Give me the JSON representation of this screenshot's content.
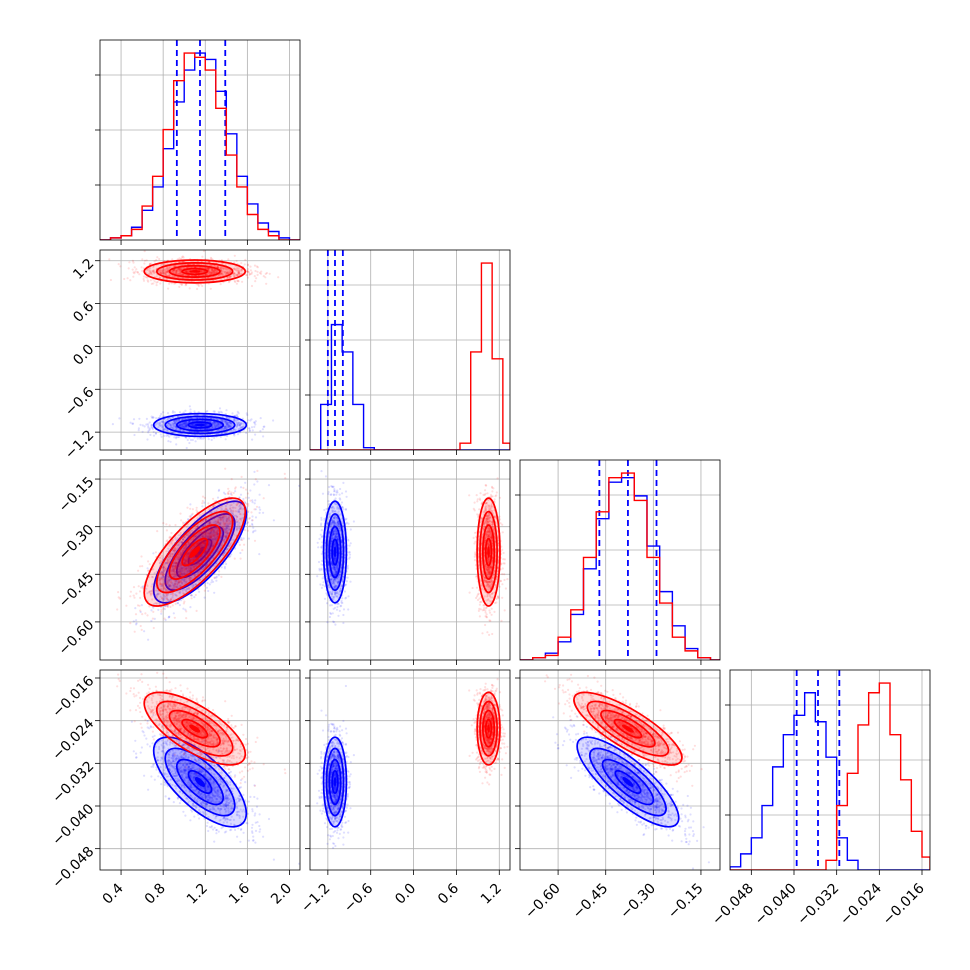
{
  "colors": {
    "series_a": "#0000ff",
    "series_b": "#ff0000",
    "grid": "#b0b0b0"
  },
  "chart_data": {
    "type": "corner",
    "grid": true,
    "parameters": [
      {
        "range": [
          0.2,
          2.1
        ],
        "ticks": [
          0.4,
          0.8,
          1.2,
          1.6,
          2.0
        ],
        "tick_labels": [
          "0.4",
          "0.8",
          "1.2",
          "1.6",
          "2.0"
        ]
      },
      {
        "range": [
          -1.45,
          1.35
        ],
        "ticks": [
          -1.2,
          -0.6,
          0.0,
          0.6,
          1.2
        ],
        "tick_labels": [
          "−1.2",
          "−0.6",
          "0.0",
          "0.6",
          "1.2"
        ]
      },
      {
        "range": [
          -0.72,
          -0.09
        ],
        "ticks": [
          -0.6,
          -0.45,
          -0.3,
          -0.15
        ],
        "tick_labels": [
          "−0.60",
          "−0.45",
          "−0.30",
          "−0.15"
        ]
      },
      {
        "range": [
          -0.052,
          -0.0145
        ],
        "ticks": [
          -0.048,
          -0.04,
          -0.032,
          -0.024,
          -0.016
        ],
        "tick_labels": [
          "−0.048",
          "−0.040",
          "−0.032",
          "−0.024",
          "−0.016"
        ]
      }
    ],
    "series": [
      {
        "color": "#0000ff",
        "mean": [
          1.15,
          -1.1,
          -0.38,
          -0.0355
        ],
        "sd": [
          0.22,
          0.08,
          0.08,
          0.0042
        ],
        "quantiles": [
          [
            0.93,
            1.15,
            1.39
          ],
          [
            -1.2,
            -1.1,
            -0.99
          ],
          [
            -0.47,
            -0.38,
            -0.29
          ],
          [
            -0.0395,
            -0.0355,
            -0.0315
          ]
        ],
        "histograms": [
          {
            "edges": [
              0.2,
              0.3,
              0.4,
              0.5,
              0.6,
              0.7,
              0.8,
              0.9,
              1.0,
              1.1,
              1.2,
              1.3,
              1.4,
              1.5,
              1.6,
              1.7,
              1.8,
              1.9,
              2.0,
              2.1
            ],
            "counts": [
              0,
              1,
              2,
              6,
              14,
              25,
              43,
              65,
              80,
              88,
              85,
              70,
              50,
              30,
              17,
              8,
              4,
              1,
              0
            ]
          },
          {
            "edges": [
              -1.45,
              -1.3,
              -1.15,
              -1.0,
              -0.85,
              -0.7,
              -0.55,
              -0.4,
              -0.25,
              -0.1,
              0.05,
              0.2,
              0.35,
              0.5,
              0.65,
              0.8,
              0.95,
              1.1,
              1.25,
              1.35
            ],
            "counts": [
              0,
              20,
              55,
              43,
              20,
              1,
              0,
              0,
              0,
              0,
              0,
              0,
              0,
              0,
              0,
              0,
              0,
              0,
              0
            ]
          },
          {
            "edges": [
              -0.72,
              -0.68,
              -0.64,
              -0.6,
              -0.56,
              -0.52,
              -0.48,
              -0.44,
              -0.4,
              -0.36,
              -0.32,
              -0.28,
              -0.24,
              -0.2,
              -0.16,
              -0.12,
              -0.09
            ],
            "counts": [
              0,
              1,
              3,
              8,
              20,
              40,
              62,
              78,
              80,
              72,
              50,
              30,
              15,
              5,
              1,
              0
            ]
          },
          {
            "edges": [
              -0.052,
              -0.05,
              -0.048,
              -0.046,
              -0.044,
              -0.042,
              -0.04,
              -0.038,
              -0.036,
              -0.034,
              -0.032,
              -0.03,
              -0.028,
              -0.026,
              -0.024,
              -0.022,
              -0.02,
              -0.018,
              -0.016,
              -0.0145
            ],
            "counts": [
              1,
              5,
              10,
              20,
              32,
              42,
              48,
              55,
              46,
              35,
              10,
              3,
              0,
              0,
              0,
              0,
              0,
              0,
              0
            ]
          }
        ]
      },
      {
        "color": "#ff0000",
        "mean": [
          1.1,
          1.05,
          -0.38,
          -0.0255
        ],
        "sd": [
          0.24,
          0.08,
          0.085,
          0.0034
        ],
        "quantiles": [
          [],
          [],
          [],
          []
        ],
        "histograms": [
          {
            "edges": [
              0.2,
              0.3,
              0.4,
              0.5,
              0.6,
              0.7,
              0.8,
              0.9,
              1.0,
              1.1,
              1.2,
              1.3,
              1.4,
              1.5,
              1.6,
              1.7,
              1.8,
              1.9,
              2.0,
              2.1
            ],
            "counts": [
              0,
              1,
              2,
              5,
              16,
              30,
              52,
              75,
              88,
              86,
              80,
              62,
              40,
              25,
              12,
              5,
              2,
              0,
              0
            ]
          },
          {
            "edges": [
              -1.45,
              -1.3,
              -1.15,
              -1.0,
              -0.85,
              -0.7,
              -0.55,
              -0.4,
              -0.25,
              -0.1,
              0.05,
              0.2,
              0.35,
              0.5,
              0.65,
              0.8,
              0.95,
              1.1,
              1.25,
              1.35
            ],
            "counts": [
              0,
              0,
              0,
              0,
              0,
              0,
              0,
              0,
              0,
              0,
              0,
              0,
              0,
              0,
              3,
              43,
              82,
              40,
              3
            ]
          },
          {
            "edges": [
              -0.72,
              -0.68,
              -0.64,
              -0.6,
              -0.56,
              -0.52,
              -0.48,
              -0.44,
              -0.4,
              -0.36,
              -0.32,
              -0.28,
              -0.24,
              -0.2,
              -0.16,
              -0.12,
              -0.09
            ],
            "counts": [
              0,
              1,
              2,
              10,
              22,
              45,
              65,
              80,
              82,
              70,
              45,
              25,
              10,
              4,
              1,
              0
            ]
          },
          {
            "edges": [
              -0.052,
              -0.05,
              -0.048,
              -0.046,
              -0.044,
              -0.042,
              -0.04,
              -0.038,
              -0.036,
              -0.034,
              -0.032,
              -0.03,
              -0.028,
              -0.026,
              -0.024,
              -0.022,
              -0.02,
              -0.018,
              -0.016,
              -0.0145
            ],
            "counts": [
              0,
              0,
              0,
              0,
              0,
              0,
              0,
              0,
              0,
              3,
              20,
              30,
              45,
              55,
              58,
              42,
              28,
              12,
              4
            ]
          }
        ]
      }
    ],
    "correlations": [
      {
        "pair": [
          0,
          2
        ],
        "rho": {
          "#0000ff": 0.75,
          "#ff0000": 0.75
        }
      },
      {
        "pair": [
          0,
          3
        ],
        "rho": {
          "#0000ff": -0.7,
          "#ff0000": -0.7
        }
      },
      {
        "pair": [
          2,
          3
        ],
        "rho": {
          "#0000ff": -0.8,
          "#ff0000": -0.8
        }
      }
    ],
    "contour_levels_sigma": [
      0.5,
      1.0,
      1.5,
      2.0
    ]
  }
}
